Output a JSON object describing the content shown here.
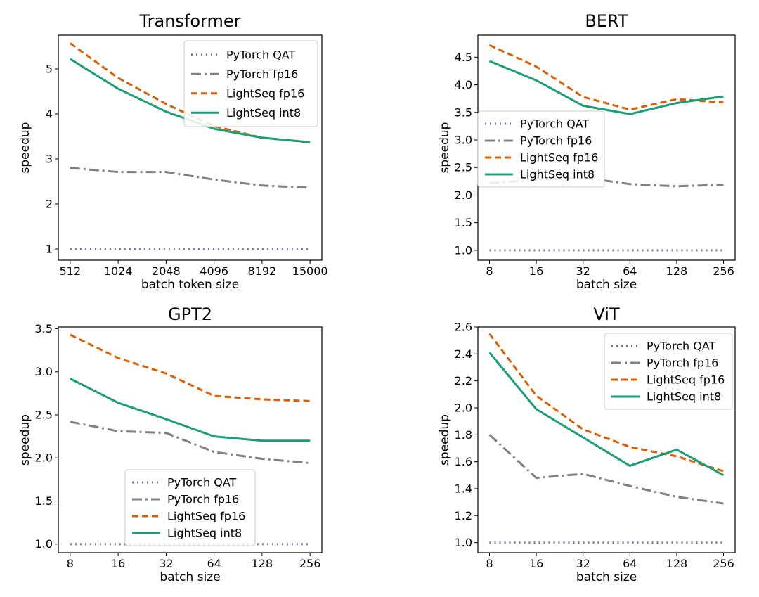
{
  "series_styles": [
    {
      "name": "PyTorch QAT",
      "color": "#7570b3",
      "dash": "2 5"
    },
    {
      "name": "PyTorch fp16",
      "color": "#808080",
      "dash": "14 5 3 5"
    },
    {
      "name": "LightSeq fp16",
      "color": "#d95f02",
      "dash": "9 5"
    },
    {
      "name": "LightSeq int8",
      "color": "#1b9e77",
      "dash": ""
    }
  ],
  "chart_data": [
    {
      "type": "line",
      "title": "Transformer",
      "xlabel": "batch token size",
      "ylabel": "speedup",
      "categories": [
        "512",
        "1024",
        "2048",
        "4096",
        "8192",
        "15000"
      ],
      "ylim": [
        0.75,
        5.75
      ],
      "yticks": [
        "1",
        "2",
        "3",
        "4",
        "5"
      ],
      "legend": "top-right",
      "grid": false,
      "series": [
        {
          "name": "PyTorch QAT",
          "values": [
            1.0,
            1.0,
            1.0,
            1.0,
            1.0,
            1.0
          ]
        },
        {
          "name": "PyTorch fp16",
          "values": [
            2.8,
            2.71,
            2.71,
            2.54,
            2.41,
            2.36
          ]
        },
        {
          "name": "LightSeq fp16",
          "values": [
            5.57,
            4.8,
            4.22,
            3.73,
            3.47,
            3.37
          ]
        },
        {
          "name": "LightSeq int8",
          "values": [
            5.22,
            4.56,
            4.05,
            3.67,
            3.47,
            3.37
          ]
        }
      ]
    },
    {
      "type": "line",
      "title": "BERT",
      "xlabel": "batch size",
      "ylabel": "speedup",
      "categories": [
        "8",
        "16",
        "32",
        "64",
        "128",
        "256"
      ],
      "ylim": [
        0.82,
        4.9
      ],
      "yticks": [
        "1.0",
        "1.5",
        "2.0",
        "2.5",
        "3.0",
        "3.5",
        "4.0",
        "4.5"
      ],
      "legend": "center-left",
      "grid": false,
      "series": [
        {
          "name": "PyTorch QAT",
          "values": [
            1.0,
            1.0,
            1.0,
            1.0,
            1.0,
            1.0
          ]
        },
        {
          "name": "PyTorch fp16",
          "values": [
            2.22,
            2.27,
            2.32,
            2.2,
            2.16,
            2.19
          ]
        },
        {
          "name": "LightSeq fp16",
          "values": [
            4.72,
            4.33,
            3.78,
            3.55,
            3.74,
            3.68
          ]
        },
        {
          "name": "LightSeq int8",
          "values": [
            4.43,
            4.08,
            3.62,
            3.47,
            3.67,
            3.79
          ]
        }
      ]
    },
    {
      "type": "line",
      "title": "GPT2",
      "xlabel": "batch size",
      "ylabel": "speedup",
      "categories": [
        "8",
        "16",
        "32",
        "64",
        "128",
        "256"
      ],
      "ylim": [
        0.9,
        3.52
      ],
      "yticks": [
        "1.0",
        "1.5",
        "2.0",
        "2.5",
        "3.0",
        "3.5"
      ],
      "legend": "lower-center",
      "grid": false,
      "series": [
        {
          "name": "PyTorch QAT",
          "values": [
            1.0,
            1.0,
            1.0,
            1.0,
            1.0,
            1.0
          ]
        },
        {
          "name": "PyTorch fp16",
          "values": [
            2.42,
            2.31,
            2.29,
            2.07,
            1.99,
            1.94
          ]
        },
        {
          "name": "LightSeq fp16",
          "values": [
            3.43,
            3.16,
            2.98,
            2.72,
            2.68,
            2.66
          ]
        },
        {
          "name": "LightSeq int8",
          "values": [
            2.92,
            2.64,
            2.45,
            2.25,
            2.2,
            2.2
          ]
        }
      ]
    },
    {
      "type": "line",
      "title": "ViT",
      "xlabel": "batch size",
      "ylabel": "speedup",
      "categories": [
        "8",
        "16",
        "32",
        "64",
        "128",
        "256"
      ],
      "ylim": [
        0.925,
        2.6
      ],
      "yticks": [
        "1.0",
        "1.2",
        "1.4",
        "1.6",
        "1.8",
        "2.0",
        "2.2",
        "2.4",
        "2.6"
      ],
      "legend": "top-right",
      "grid": false,
      "series": [
        {
          "name": "PyTorch QAT",
          "values": [
            1.0,
            1.0,
            1.0,
            1.0,
            1.0,
            1.0
          ]
        },
        {
          "name": "PyTorch fp16",
          "values": [
            1.8,
            1.48,
            1.51,
            1.42,
            1.34,
            1.29
          ]
        },
        {
          "name": "LightSeq fp16",
          "values": [
            2.55,
            2.09,
            1.84,
            1.71,
            1.64,
            1.53
          ]
        },
        {
          "name": "LightSeq int8",
          "values": [
            2.41,
            1.99,
            1.78,
            1.57,
            1.69,
            1.5
          ]
        }
      ]
    }
  ]
}
